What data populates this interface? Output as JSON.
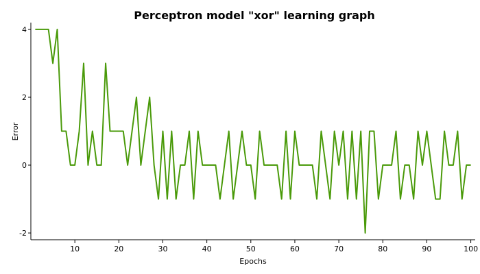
{
  "chart_data": {
    "type": "line",
    "title": "Perceptron model \"xor\" learning graph",
    "x_label": "Epochs",
    "y_label": "Error",
    "x": [
      1,
      2,
      3,
      4,
      5,
      6,
      7,
      8,
      9,
      10,
      11,
      12,
      13,
      14,
      15,
      16,
      17,
      18,
      19,
      20,
      21,
      22,
      23,
      24,
      25,
      26,
      27,
      28,
      29,
      30,
      31,
      32,
      33,
      34,
      35,
      36,
      37,
      38,
      39,
      40,
      41,
      42,
      43,
      44,
      45,
      46,
      47,
      48,
      49,
      50,
      51,
      52,
      53,
      54,
      55,
      56,
      57,
      58,
      59,
      60,
      61,
      62,
      63,
      64,
      65,
      66,
      67,
      68,
      69,
      70,
      71,
      72,
      73,
      74,
      75,
      76,
      77,
      78,
      79,
      80,
      81,
      82,
      83,
      84,
      85,
      86,
      87,
      88,
      89,
      90,
      91,
      92,
      93,
      94,
      95,
      96,
      97,
      98,
      99,
      100
    ],
    "series": [
      {
        "name": "Error",
        "color": "#4a9a0a",
        "values": [
          4,
          4,
          4,
          4,
          3,
          4,
          1,
          1,
          0,
          0,
          1,
          3,
          0,
          1,
          0,
          0,
          3,
          1,
          1,
          1,
          1,
          0,
          1,
          2,
          0,
          1,
          2,
          0,
          -1,
          1,
          -1,
          1,
          -1,
          0,
          0,
          1,
          -1,
          1,
          0,
          0,
          0,
          0,
          -1,
          0,
          1,
          -1,
          0,
          1,
          0,
          0,
          -1,
          1,
          0,
          0,
          0,
          0,
          -1,
          1,
          -1,
          1,
          0,
          0,
          0,
          0,
          -1,
          1,
          0,
          -1,
          1,
          0,
          1,
          -1,
          1,
          -1,
          1,
          -2,
          1,
          1,
          -1,
          0,
          0,
          0,
          1,
          -1,
          0,
          0,
          -1,
          1,
          0,
          1,
          0,
          -1,
          -1,
          1,
          0,
          0,
          1,
          -1,
          0,
          0
        ]
      }
    ],
    "xlim": [
      0,
      101
    ],
    "ylim": [
      -2.2,
      4.2
    ],
    "xticks": [
      10,
      20,
      30,
      40,
      50,
      60,
      70,
      80,
      90,
      100
    ],
    "yticks": [
      -2,
      0,
      2,
      4
    ]
  }
}
